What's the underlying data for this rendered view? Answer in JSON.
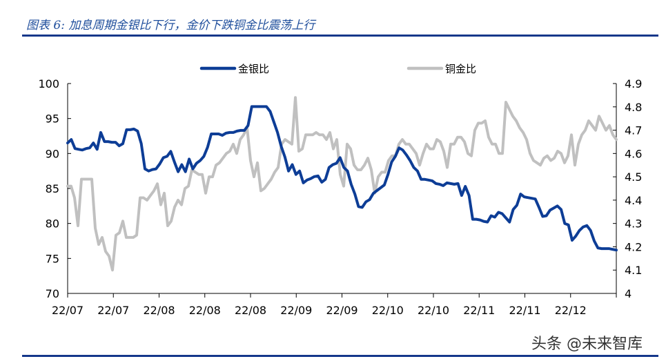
{
  "title": "图表 6:  加息周期金银比下行，金价下跌铜金比震荡上行",
  "watermark": "头条 @未来智库",
  "colors": {
    "gold_silver": "#0d3d96",
    "copper_gold": "#c0c0c0",
    "rule": "#14378a"
  },
  "chart_data": {
    "type": "line",
    "title": "图表 6:  加息周期金银比下行，金价下跌铜金比震荡上行",
    "x_tick_labels": [
      "22/07",
      "22/07",
      "22/08",
      "22/08",
      "22/08",
      "22/09",
      "22/09",
      "22/10",
      "22/10",
      "22/11",
      "22/11",
      "22/12"
    ],
    "y_left": {
      "min": 70,
      "max": 100,
      "ticks": [
        "70",
        "75",
        "80",
        "85",
        "90",
        "95",
        "100"
      ]
    },
    "y_right": {
      "min": 4.0,
      "max": 4.9,
      "ticks": [
        "4",
        "4.1",
        "4.2",
        "4.3",
        "4.4",
        "4.5",
        "4.6",
        "4.7",
        "4.8",
        "4.9"
      ]
    },
    "legend_position": "top",
    "grid": false,
    "series": [
      {
        "name": "金银比",
        "axis": "left",
        "values": [
          91.5,
          92.0,
          90.7,
          90.6,
          90.5,
          90.7,
          90.8,
          91.5,
          90.6,
          93.0,
          91.7,
          91.7,
          91.6,
          91.6,
          91.1,
          91.4,
          93.4,
          93.4,
          93.5,
          93.2,
          91.4,
          87.8,
          87.5,
          87.7,
          87.8,
          88.5,
          89.4,
          89.6,
          90.3,
          88.8,
          87.4,
          88.4,
          87.4,
          89.2,
          87.8,
          88.6,
          89.0,
          89.6,
          90.9,
          92.8,
          92.8,
          92.8,
          92.6,
          92.9,
          93.0,
          93.0,
          93.2,
          93.3,
          93.3,
          94.0,
          96.7,
          96.7,
          96.7,
          96.7,
          96.7,
          96.0,
          94.5,
          93.0,
          91.0,
          89.5,
          87.5,
          88.4,
          87.0,
          87.5,
          85.8,
          86.2,
          86.4,
          86.7,
          86.8,
          85.9,
          86.3,
          88.0,
          88.4,
          88.6,
          89.4,
          88.0,
          87.5,
          85.6,
          84.2,
          82.4,
          82.3,
          83.1,
          83.4,
          84.3,
          84.7,
          85.1,
          85.5,
          87.0,
          88.8,
          89.6,
          90.8,
          90.5,
          89.8,
          89.0,
          88.0,
          87.5,
          86.3,
          86.3,
          86.2,
          86.1,
          85.7,
          85.6,
          85.4,
          85.8,
          85.7,
          85.6,
          85.7,
          84.0,
          85.3,
          84.0,
          80.6,
          80.6,
          80.5,
          80.3,
          80.2,
          81.1,
          80.9,
          81.6,
          81.4,
          80.8,
          80.2,
          82.0,
          82.6,
          84.2,
          83.8,
          83.7,
          83.6,
          83.5,
          82.3,
          81.0,
          81.1,
          81.9,
          82.2,
          82.5,
          82.0,
          80.0,
          79.8,
          77.6,
          78.2,
          79.0,
          79.5,
          79.7,
          79.0,
          77.5,
          76.5,
          76.4,
          76.4,
          76.4,
          76.3,
          76.2
        ]
      },
      {
        "name": "铜金比",
        "axis": "right",
        "values": [
          4.46,
          4.46,
          4.41,
          4.29,
          4.49,
          4.49,
          4.49,
          4.49,
          4.28,
          4.21,
          4.24,
          4.18,
          4.16,
          4.1,
          4.25,
          4.26,
          4.31,
          4.24,
          4.24,
          4.24,
          4.25,
          4.41,
          4.41,
          4.4,
          4.42,
          4.44,
          4.47,
          4.38,
          4.43,
          4.29,
          4.31,
          4.37,
          4.4,
          4.38,
          4.45,
          4.46,
          4.53,
          4.52,
          4.51,
          4.51,
          4.43,
          4.5,
          4.5,
          4.55,
          4.56,
          4.58,
          4.6,
          4.61,
          4.64,
          4.6,
          4.66,
          4.68,
          4.71,
          4.57,
          4.5,
          4.56,
          4.44,
          4.45,
          4.47,
          4.49,
          4.52,
          4.54,
          4.64,
          4.66,
          4.65,
          4.64,
          4.84,
          4.61,
          4.62,
          4.68,
          4.68,
          4.68,
          4.69,
          4.68,
          4.68,
          4.66,
          4.69,
          4.62,
          4.66,
          4.51,
          4.46,
          4.64,
          4.62,
          4.55,
          4.53,
          4.53,
          4.55,
          4.58,
          4.53,
          4.43,
          4.5,
          4.52,
          4.52,
          4.57,
          4.59,
          4.59,
          4.64,
          4.66,
          4.64,
          4.64,
          4.62,
          4.6,
          4.55,
          4.6,
          4.64,
          4.62,
          4.62,
          4.66,
          4.65,
          4.61,
          4.54,
          4.64,
          4.64,
          4.67,
          4.67,
          4.65,
          4.6,
          4.59,
          4.7,
          4.73,
          4.73,
          4.74,
          4.67,
          4.64,
          4.64,
          4.6,
          4.6,
          4.82,
          4.79,
          4.76,
          4.74,
          4.71,
          4.69,
          4.66,
          4.6,
          4.57,
          4.56,
          4.55,
          4.58,
          4.59,
          4.57,
          4.58,
          4.61,
          4.6,
          4.56,
          4.59,
          4.68,
          4.55,
          4.64,
          4.68,
          4.7,
          4.74,
          4.72,
          4.7,
          4.76,
          4.73,
          4.7,
          4.72,
          4.68,
          4.66
        ]
      }
    ]
  }
}
